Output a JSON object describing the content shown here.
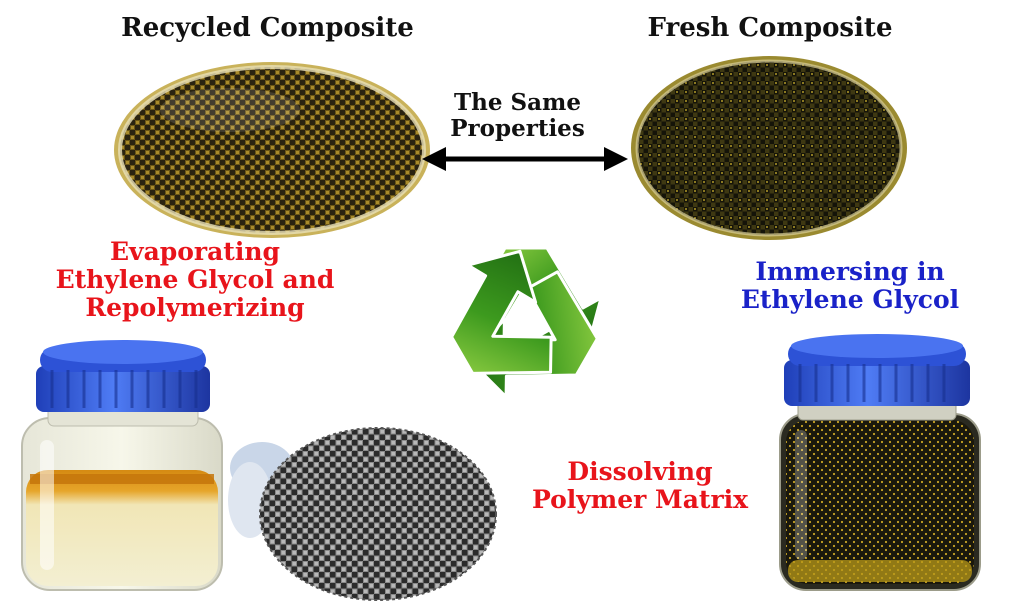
{
  "labels": {
    "recycled": "Recycled Composite",
    "fresh": "Fresh Composite",
    "same_line1": "The Same",
    "same_line2": "Properties",
    "evap_line1": "Evaporating",
    "evap_line2": "Ethylene Glycol and",
    "evap_line3": "Repolymerizing",
    "immerse_line1": "Immersing in",
    "immerse_line2": "Ethylene Glycol",
    "dissolve_line1": "Dissolving",
    "dissolve_line2": "Polymer Matrix"
  },
  "colors": {
    "black_text": "#111111",
    "red_text": "#e8141b",
    "blue_text": "#1a22c8",
    "cap_blue": "#2f5fe8",
    "recycle_green": "#3d9a1e"
  }
}
